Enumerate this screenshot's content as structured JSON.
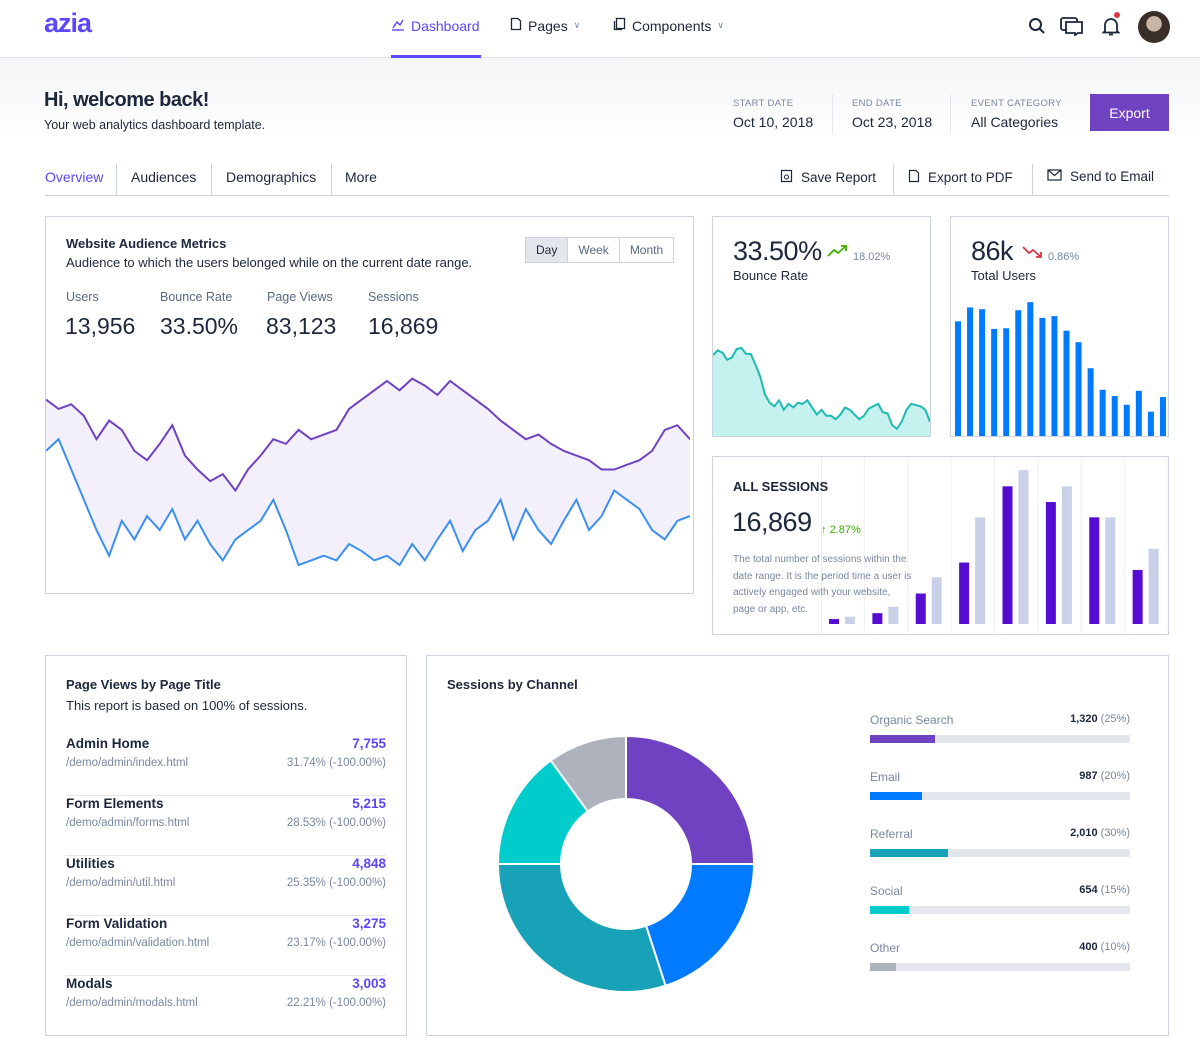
{
  "header": {
    "logo": "azia",
    "nav": [
      {
        "label": "Dashboard",
        "icon": "chart-icon",
        "active": true
      },
      {
        "label": "Pages",
        "icon": "file-icon"
      },
      {
        "label": "Components",
        "icon": "box-icon"
      }
    ],
    "icons": [
      "search-icon",
      "chat-icon",
      "bell-icon"
    ]
  },
  "page": {
    "title": "Hi, welcome back!",
    "subtitle": "Your web analytics dashboard template.",
    "start_label": "START DATE",
    "start_value": "Oct 10, 2018",
    "end_label": "END DATE",
    "end_value": "Oct 23, 2018",
    "cat_label": "EVENT CATEGORY",
    "cat_value": "All Categories",
    "export": "Export"
  },
  "tabs": [
    "Overview",
    "Audiences",
    "Demographics",
    "More"
  ],
  "actions": [
    {
      "label": "Save Report",
      "icon": "save-icon"
    },
    {
      "label": "Export to PDF",
      "icon": "pdf-icon"
    },
    {
      "label": "Send to Email",
      "icon": "mail-icon"
    }
  ],
  "audience": {
    "title": "Website Audience Metrics",
    "desc": "Audience to which the users belonged while on the current date range.",
    "ranges": [
      "Day",
      "Week",
      "Month"
    ],
    "selected_range": "Day",
    "metrics": [
      {
        "label": "Users",
        "value": "13,956"
      },
      {
        "label": "Bounce Rate",
        "value": "33.50%"
      },
      {
        "label": "Page Views",
        "value": "83,123"
      },
      {
        "label": "Sessions",
        "value": "16,869"
      }
    ]
  },
  "bounce": {
    "value": "33.50%",
    "trend": "18.02%",
    "trend_dir": "up",
    "label": "Bounce Rate"
  },
  "users": {
    "value": "86k",
    "trend": "0.86%",
    "trend_dir": "down",
    "label": "Total Users"
  },
  "sessions": {
    "title": "ALL SESSIONS",
    "value": "16,869",
    "trend": "2.87%",
    "desc": "The total number of sessions within the date range. It is the period time a user is actively engaged with your website, page or app, etc."
  },
  "pageviews": {
    "title": "Page Views by Page Title",
    "desc": "This report is based on 100% of sessions.",
    "rows": [
      {
        "title": "Admin Home",
        "url": "/demo/admin/index.html",
        "value": "7,755",
        "pct": "31.74% (-100.00%)"
      },
      {
        "title": "Form Elements",
        "url": "/demo/admin/forms.html",
        "value": "5,215",
        "pct": "28.53% (-100.00%)"
      },
      {
        "title": "Utilities",
        "url": "/demo/admin/util.html",
        "value": "4,848",
        "pct": "25.35% (-100.00%)"
      },
      {
        "title": "Form Validation",
        "url": "/demo/admin/validation.html",
        "value": "3,275",
        "pct": "23.17% (-100.00%)"
      },
      {
        "title": "Modals",
        "url": "/demo/admin/modals.html",
        "value": "3,003",
        "pct": "22.21% (-100.00%)"
      }
    ]
  },
  "channels": {
    "title": "Sessions by Channel",
    "items": [
      {
        "label": "Organic Search",
        "count": "1,320",
        "pct_label": "(25%)",
        "pct": 25,
        "color": "#6f42c1"
      },
      {
        "label": "Email",
        "count": "987",
        "pct_label": "(20%)",
        "pct": 20,
        "color": "#007bff"
      },
      {
        "label": "Referral",
        "count": "2,010",
        "pct_label": "(30%)",
        "pct": 30,
        "color": "#17a2b8"
      },
      {
        "label": "Social",
        "count": "654",
        "pct_label": "(15%)",
        "pct": 15,
        "color": "#00cccc"
      },
      {
        "label": "Other",
        "count": "400",
        "pct_label": "(10%)",
        "pct": 10,
        "color": "#adb2bd"
      }
    ]
  },
  "chart_data": [
    {
      "type": "area",
      "id": "audience",
      "series": [
        {
          "color": "#6f42c1",
          "values": [
            83,
            79,
            81,
            76,
            66,
            74,
            70,
            61,
            57,
            64,
            72,
            59,
            53,
            48,
            51,
            44,
            53,
            59,
            66,
            64,
            70,
            66,
            68,
            70,
            79,
            83,
            87,
            91,
            87,
            92,
            89,
            85,
            91,
            87,
            83,
            79,
            74,
            70,
            66,
            68,
            64,
            61,
            59,
            57,
            53,
            53,
            55,
            57,
            61,
            70,
            72,
            66
          ]
        },
        {
          "color": "#3b8ff0",
          "values": [
            61,
            66,
            53,
            40,
            27,
            16,
            31,
            23,
            33,
            27,
            36,
            23,
            31,
            21,
            14,
            23,
            27,
            31,
            40,
            27,
            12,
            14,
            16,
            14,
            21,
            18,
            14,
            16,
            12,
            21,
            14,
            23,
            31,
            18,
            27,
            31,
            40,
            23,
            36,
            27,
            21,
            31,
            40,
            27,
            33,
            44,
            40,
            36,
            27,
            23,
            31,
            33
          ]
        }
      ],
      "ylim": [
        0,
        100
      ]
    },
    {
      "type": "area",
      "id": "bounce",
      "color": "#1ebbb1",
      "values": [
        68,
        72,
        70,
        64,
        66,
        73,
        74,
        69,
        69,
        60,
        50,
        35,
        28,
        25,
        30,
        22,
        27,
        24,
        28,
        27,
        30,
        24,
        18,
        22,
        17,
        17,
        14,
        18,
        24,
        22,
        18,
        14,
        17,
        23,
        25,
        27,
        20,
        19,
        9,
        6,
        12,
        22,
        27,
        26,
        25,
        22,
        12
      ],
      "ylim": [
        0,
        100
      ]
    },
    {
      "type": "bar",
      "id": "users",
      "color": "#007bff",
      "values": [
        330,
        370,
        365,
        308,
        310,
        362,
        385,
        340,
        345,
        303,
        270,
        195,
        133,
        115,
        90,
        130,
        70,
        112
      ]
    },
    {
      "type": "bar",
      "id": "sessions",
      "series": [
        {
          "color": "#560bd0",
          "values": [
            10,
            22,
            62,
            125,
            280,
            248,
            217,
            110
          ]
        },
        {
          "color": "#cad0e8",
          "values": [
            15,
            35,
            95,
            217,
            313,
            280,
            217,
            153
          ]
        }
      ]
    },
    {
      "type": "pie",
      "id": "channels",
      "donut": true,
      "values": [
        25,
        20,
        30,
        15,
        10
      ],
      "colors": [
        "#6f42c1",
        "#007bff",
        "#17a2b8",
        "#00cccc",
        "#adb2bd"
      ]
    }
  ]
}
